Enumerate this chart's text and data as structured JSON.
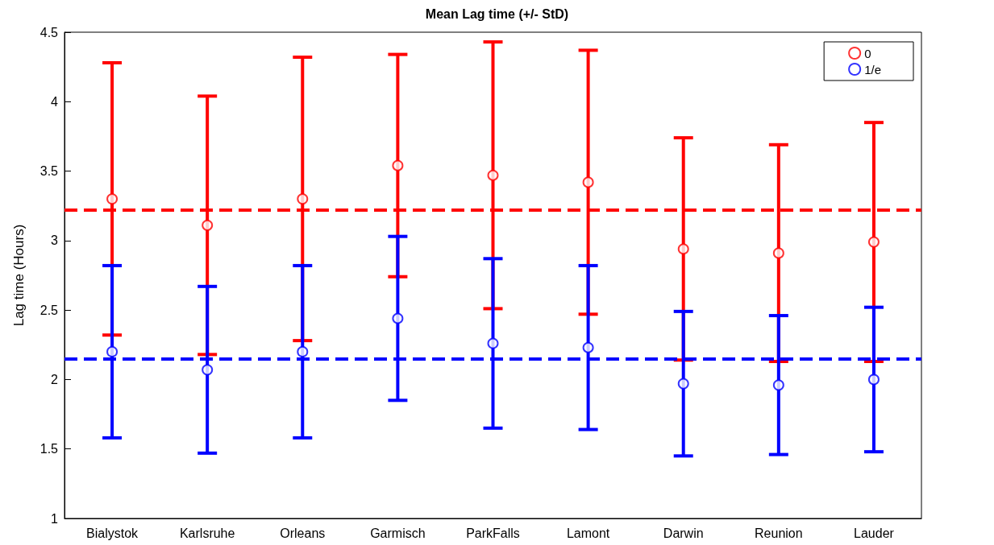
{
  "chart_data": {
    "type": "scatter",
    "title": "Mean Lag time (+/- StD)",
    "ylabel": "Lag time (Hours)",
    "categories": [
      "Bialystok",
      "Karlsruhe",
      "Orleans",
      "Garmisch",
      "ParkFalls",
      "Lamont",
      "Darwin",
      "Reunion",
      "Lauder"
    ],
    "series": [
      {
        "name": "0",
        "color": "#ff0000",
        "values": [
          3.3,
          3.11,
          3.3,
          3.54,
          3.47,
          3.42,
          2.94,
          2.91,
          2.99
        ],
        "errors": [
          0.98,
          0.93,
          1.02,
          0.8,
          0.96,
          0.95,
          0.8,
          0.78,
          0.86
        ]
      },
      {
        "name": "1/e",
        "color": "#0000ff",
        "values": [
          2.2,
          2.07,
          2.2,
          2.44,
          2.26,
          2.23,
          1.97,
          1.96,
          2.0
        ],
        "errors": [
          0.62,
          0.6,
          0.62,
          0.59,
          0.61,
          0.59,
          0.52,
          0.5,
          0.52
        ]
      }
    ],
    "ylim": [
      1,
      4.5
    ],
    "yticks": [
      1,
      1.5,
      2,
      2.5,
      3,
      3.5,
      4,
      4.5
    ],
    "grid": false,
    "legend": "top right",
    "marker": "circle",
    "ref_lines": [
      {
        "axis": "y",
        "value": 3.22,
        "color": "#ff0000",
        "line_style": "dashed"
      },
      {
        "axis": "y",
        "value": 2.15,
        "color": "#0000ff",
        "line_style": "dashed"
      }
    ]
  }
}
